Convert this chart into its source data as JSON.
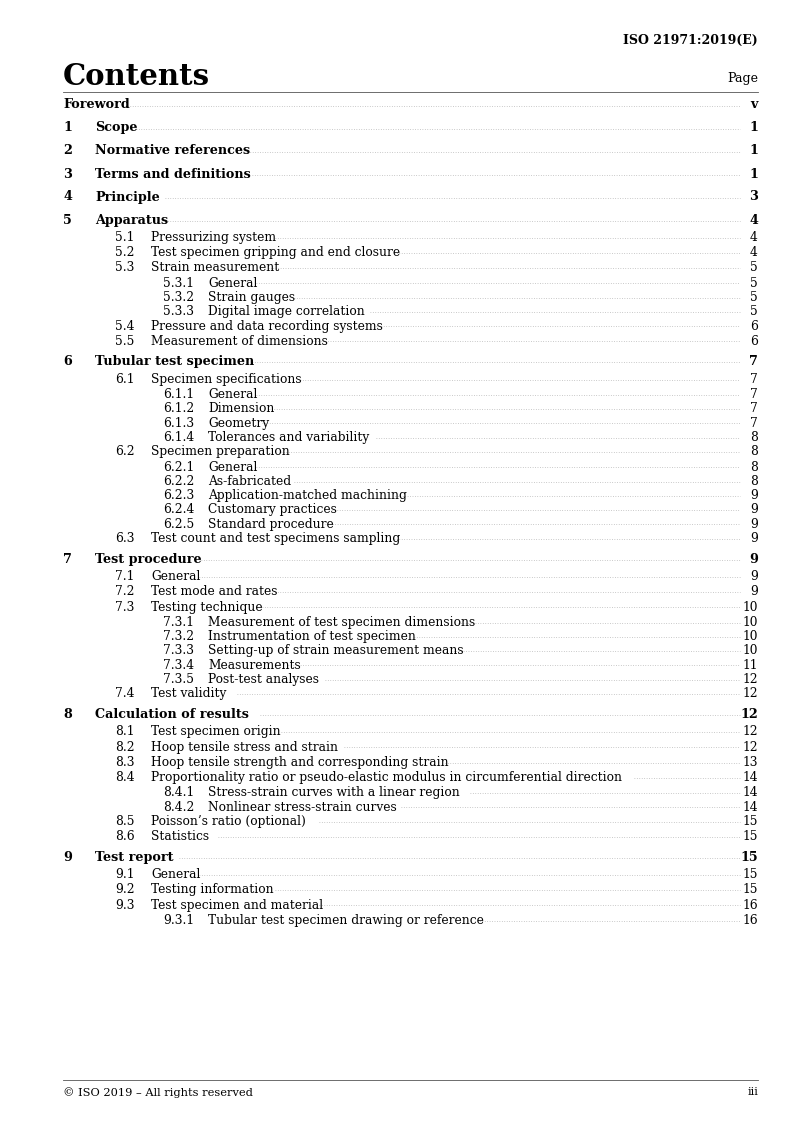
{
  "header_right": "ISO 21971:2019(E)",
  "title": "Contents",
  "page_label": "Page",
  "footer_left": "© ISO 2019 – All rights reserved",
  "footer_right": "iii",
  "bg_color": "#ffffff",
  "text_color": "#000000",
  "dot_color": "#aaaaaa",
  "entries": [
    {
      "level": 0,
      "num": "Foreword",
      "title": "",
      "page": "v",
      "bold": true,
      "is_foreword": true,
      "gap_before": false
    },
    {
      "level": 0,
      "num": "1",
      "title": "Scope",
      "page": "1",
      "bold": true,
      "is_foreword": false,
      "gap_before": true
    },
    {
      "level": 0,
      "num": "2",
      "title": "Normative references",
      "page": "1",
      "bold": true,
      "is_foreword": false,
      "gap_before": true
    },
    {
      "level": 0,
      "num": "3",
      "title": "Terms and definitions",
      "page": "1",
      "bold": true,
      "is_foreword": false,
      "gap_before": true
    },
    {
      "level": 0,
      "num": "4",
      "title": "Principle",
      "page": "3",
      "bold": true,
      "is_foreword": false,
      "gap_before": true
    },
    {
      "level": 0,
      "num": "5",
      "title": "Apparatus",
      "page": "4",
      "bold": true,
      "is_foreword": false,
      "gap_before": true
    },
    {
      "level": 1,
      "num": "5.1",
      "title": "Pressurizing system",
      "page": "4",
      "bold": false,
      "is_foreword": false,
      "gap_before": false
    },
    {
      "level": 1,
      "num": "5.2",
      "title": "Test specimen gripping and end closure",
      "page": "4",
      "bold": false,
      "is_foreword": false,
      "gap_before": false
    },
    {
      "level": 1,
      "num": "5.3",
      "title": "Strain measurement",
      "page": "5",
      "bold": false,
      "is_foreword": false,
      "gap_before": false
    },
    {
      "level": 2,
      "num": "5.3.1",
      "title": "General",
      "page": "5",
      "bold": false,
      "is_foreword": false,
      "gap_before": false
    },
    {
      "level": 2,
      "num": "5.3.2",
      "title": "Strain gauges",
      "page": "5",
      "bold": false,
      "is_foreword": false,
      "gap_before": false
    },
    {
      "level": 2,
      "num": "5.3.3",
      "title": "Digital image correlation",
      "page": "5",
      "bold": false,
      "is_foreword": false,
      "gap_before": false
    },
    {
      "level": 1,
      "num": "5.4",
      "title": "Pressure and data recording systems",
      "page": "6",
      "bold": false,
      "is_foreword": false,
      "gap_before": false
    },
    {
      "level": 1,
      "num": "5.5",
      "title": "Measurement of dimensions",
      "page": "6",
      "bold": false,
      "is_foreword": false,
      "gap_before": false
    },
    {
      "level": 0,
      "num": "6",
      "title": "Tubular test specimen",
      "page": "7",
      "bold": true,
      "is_foreword": false,
      "gap_before": true
    },
    {
      "level": 1,
      "num": "6.1",
      "title": "Specimen specifications",
      "page": "7",
      "bold": false,
      "is_foreword": false,
      "gap_before": false
    },
    {
      "level": 2,
      "num": "6.1.1",
      "title": "General",
      "page": "7",
      "bold": false,
      "is_foreword": false,
      "gap_before": false
    },
    {
      "level": 2,
      "num": "6.1.2",
      "title": "Dimension",
      "page": "7",
      "bold": false,
      "is_foreword": false,
      "gap_before": false
    },
    {
      "level": 2,
      "num": "6.1.3",
      "title": "Geometry",
      "page": "7",
      "bold": false,
      "is_foreword": false,
      "gap_before": false
    },
    {
      "level": 2,
      "num": "6.1.4",
      "title": "Tolerances and variability",
      "page": "8",
      "bold": false,
      "is_foreword": false,
      "gap_before": false
    },
    {
      "level": 1,
      "num": "6.2",
      "title": "Specimen preparation",
      "page": "8",
      "bold": false,
      "is_foreword": false,
      "gap_before": false
    },
    {
      "level": 2,
      "num": "6.2.1",
      "title": "General",
      "page": "8",
      "bold": false,
      "is_foreword": false,
      "gap_before": false
    },
    {
      "level": 2,
      "num": "6.2.2",
      "title": "As-fabricated",
      "page": "8",
      "bold": false,
      "is_foreword": false,
      "gap_before": false
    },
    {
      "level": 2,
      "num": "6.2.3",
      "title": "Application-matched machining",
      "page": "9",
      "bold": false,
      "is_foreword": false,
      "gap_before": false
    },
    {
      "level": 2,
      "num": "6.2.4",
      "title": "Customary practices",
      "page": "9",
      "bold": false,
      "is_foreword": false,
      "gap_before": false
    },
    {
      "level": 2,
      "num": "6.2.5",
      "title": "Standard procedure",
      "page": "9",
      "bold": false,
      "is_foreword": false,
      "gap_before": false
    },
    {
      "level": 1,
      "num": "6.3",
      "title": "Test count and test specimens sampling",
      "page": "9",
      "bold": false,
      "is_foreword": false,
      "gap_before": false
    },
    {
      "level": 0,
      "num": "7",
      "title": "Test procedure",
      "page": "9",
      "bold": true,
      "is_foreword": false,
      "gap_before": true
    },
    {
      "level": 1,
      "num": "7.1",
      "title": "General",
      "page": "9",
      "bold": false,
      "is_foreword": false,
      "gap_before": false
    },
    {
      "level": 1,
      "num": "7.2",
      "title": "Test mode and rates",
      "page": "9",
      "bold": false,
      "is_foreword": false,
      "gap_before": false
    },
    {
      "level": 1,
      "num": "7.3",
      "title": "Testing technique",
      "page": "10",
      "bold": false,
      "is_foreword": false,
      "gap_before": false
    },
    {
      "level": 2,
      "num": "7.3.1",
      "title": "Measurement of test specimen dimensions",
      "page": "10",
      "bold": false,
      "is_foreword": false,
      "gap_before": false
    },
    {
      "level": 2,
      "num": "7.3.2",
      "title": "Instrumentation of test specimen",
      "page": "10",
      "bold": false,
      "is_foreword": false,
      "gap_before": false
    },
    {
      "level": 2,
      "num": "7.3.3",
      "title": "Setting-up of strain measurement means",
      "page": "10",
      "bold": false,
      "is_foreword": false,
      "gap_before": false
    },
    {
      "level": 2,
      "num": "7.3.4",
      "title": "Measurements",
      "page": "11",
      "bold": false,
      "is_foreword": false,
      "gap_before": false
    },
    {
      "level": 2,
      "num": "7.3.5",
      "title": "Post-test analyses",
      "page": "12",
      "bold": false,
      "is_foreword": false,
      "gap_before": false
    },
    {
      "level": 1,
      "num": "7.4",
      "title": "Test validity",
      "page": "12",
      "bold": false,
      "is_foreword": false,
      "gap_before": false
    },
    {
      "level": 0,
      "num": "8",
      "title": "Calculation of results",
      "page": "12",
      "bold": true,
      "is_foreword": false,
      "gap_before": true
    },
    {
      "level": 1,
      "num": "8.1",
      "title": "Test specimen origin",
      "page": "12",
      "bold": false,
      "is_foreword": false,
      "gap_before": false
    },
    {
      "level": 1,
      "num": "8.2",
      "title": "Hoop tensile stress and strain",
      "page": "12",
      "bold": false,
      "is_foreword": false,
      "gap_before": false
    },
    {
      "level": 1,
      "num": "8.3",
      "title": "Hoop tensile strength and corresponding strain",
      "page": "13",
      "bold": false,
      "is_foreword": false,
      "gap_before": false
    },
    {
      "level": 1,
      "num": "8.4",
      "title": "Proportionality ratio or pseudo-elastic modulus in circumferential direction",
      "page": "14",
      "bold": false,
      "is_foreword": false,
      "gap_before": false
    },
    {
      "level": 2,
      "num": "8.4.1",
      "title": "Stress-strain curves with a linear region",
      "page": "14",
      "bold": false,
      "is_foreword": false,
      "gap_before": false
    },
    {
      "level": 2,
      "num": "8.4.2",
      "title": "Nonlinear stress-strain curves",
      "page": "14",
      "bold": false,
      "is_foreword": false,
      "gap_before": false
    },
    {
      "level": 1,
      "num": "8.5",
      "title": "Poisson’s ratio (optional)",
      "page": "15",
      "bold": false,
      "is_foreword": false,
      "gap_before": false
    },
    {
      "level": 1,
      "num": "8.6",
      "title": "Statistics",
      "page": "15",
      "bold": false,
      "is_foreword": false,
      "gap_before": false
    },
    {
      "level": 0,
      "num": "9",
      "title": "Test report",
      "page": "15",
      "bold": true,
      "is_foreword": false,
      "gap_before": true
    },
    {
      "level": 1,
      "num": "9.1",
      "title": "General",
      "page": "15",
      "bold": false,
      "is_foreword": false,
      "gap_before": false
    },
    {
      "level": 1,
      "num": "9.2",
      "title": "Testing information",
      "page": "15",
      "bold": false,
      "is_foreword": false,
      "gap_before": false
    },
    {
      "level": 1,
      "num": "9.3",
      "title": "Test specimen and material",
      "page": "16",
      "bold": false,
      "is_foreword": false,
      "gap_before": false
    },
    {
      "level": 2,
      "num": "9.3.1",
      "title": "Tubular test specimen drawing or reference",
      "page": "16",
      "bold": false,
      "is_foreword": false,
      "gap_before": false
    }
  ]
}
